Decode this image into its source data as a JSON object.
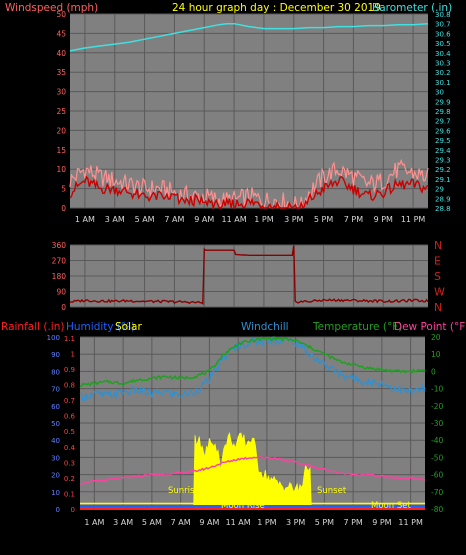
{
  "header": {
    "left_label": "Windspeed (mph)",
    "title": "24 hour graph day : December 30 2019",
    "right_label": "Barometer (.in)"
  },
  "colors": {
    "background": "#000000",
    "plot_bg": "#808080",
    "grid": "#5a5a5a",
    "axis": "#c0c0c0",
    "wind_label": "#ff6060",
    "title": "#ffff00",
    "baro": "#40e0e0",
    "wind_avg": "#cc0000",
    "wind_gust": "#ff9090",
    "wind_dir": "#8b0000",
    "rain": "#ff2020",
    "humidity": "#2060ff",
    "solar": "#ffff00",
    "windchill": "#3090d0",
    "temperature": "#20a020",
    "dewpoint": "#ff40a0",
    "moon": "#ffff00"
  },
  "chart_data": [
    {
      "type": "line",
      "title": "24 hour graph day : December 30 2019",
      "ylabel": "Windspeed (mph)",
      "ylabel_right": "Barometer (.in)",
      "x_ticks": [
        "1 AM",
        "3 AM",
        "5 AM",
        "7 AM",
        "9 AM",
        "11 AM",
        "1 PM",
        "3 PM",
        "5 PM",
        "7 PM",
        "9 PM",
        "11 PM"
      ],
      "x_range_hours": [
        0,
        24
      ],
      "ylim": [
        0,
        50
      ],
      "y_ticks": [
        0,
        5,
        10,
        15,
        20,
        25,
        30,
        35,
        40,
        45,
        50
      ],
      "ylim_right": [
        28.8,
        30.8
      ],
      "y_ticks_right": [
        "28.8",
        "28.9",
        "29",
        "29.1",
        "29.2",
        "29.3",
        "29.4",
        "29.5",
        "29.6",
        "29.7",
        "29.8",
        "29.9",
        "30",
        "30.1",
        "30.2",
        "30.3",
        "30.4",
        "30.5",
        "30.6",
        "30.7",
        "30.8"
      ],
      "series": [
        {
          "name": "Barometer (.in)",
          "axis": "right",
          "x": [
            0,
            1,
            2,
            3,
            4,
            5,
            6,
            7,
            8,
            9,
            10,
            10.5,
            11,
            12,
            13,
            14,
            15,
            16,
            17,
            18,
            19,
            20,
            21,
            22,
            23,
            24
          ],
          "values": [
            30.42,
            30.45,
            30.47,
            30.49,
            30.51,
            30.54,
            30.57,
            30.6,
            30.63,
            30.66,
            30.69,
            30.7,
            30.7,
            30.67,
            30.65,
            30.65,
            30.65,
            30.66,
            30.66,
            30.67,
            30.67,
            30.68,
            30.68,
            30.69,
            30.69,
            30.7
          ]
        },
        {
          "axis": "left",
          "x": [
            0,
            1,
            2,
            3,
            4,
            5,
            6,
            7,
            8,
            9,
            10,
            11,
            12,
            13,
            14,
            15,
            15.5,
            16,
            17,
            18,
            19,
            20,
            21,
            22,
            23,
            24
          ],
          "values": [
            4,
            7,
            5,
            5,
            4,
            3,
            3,
            3,
            2,
            2,
            1,
            1,
            1.5,
            1,
            1,
            0.5,
            0,
            2,
            5,
            7,
            5,
            3,
            4,
            6,
            6,
            5
          ]
        },
        {
          "axis": "left",
          "x": [
            0,
            1,
            2,
            3,
            4,
            5,
            6,
            7,
            8,
            9,
            10,
            11,
            12,
            13,
            14,
            15,
            15.5,
            16,
            17,
            18,
            19,
            20,
            21,
            22,
            23,
            24
          ],
          "values": [
            7,
            10,
            8,
            7,
            6,
            5,
            5,
            4,
            3,
            3,
            2,
            2,
            3,
            2,
            2,
            1,
            0.5,
            4,
            8,
            10,
            8,
            6,
            7,
            10,
            9,
            8
          ]
        }
      ]
    },
    {
      "type": "line",
      "ylim": [
        0,
        360
      ],
      "y_ticks": [
        0,
        90,
        180,
        270,
        360
      ],
      "right_labels": [
        "N",
        "W",
        "S",
        "E",
        "N"
      ],
      "series": [
        {
          "axis": "left",
          "x": [
            0,
            1,
            2,
            3,
            4,
            5,
            6,
            7,
            8,
            8.99,
            9.0,
            10.0,
            11.0,
            11.1,
            12,
            13,
            14,
            14.99,
            15.0,
            15.1,
            16,
            17,
            18,
            19,
            20,
            21,
            22,
            23,
            24
          ],
          "values": [
            30,
            38,
            35,
            34,
            36,
            33,
            32,
            30,
            28,
            25,
            330,
            330,
            330,
            305,
            300,
            300,
            300,
            300,
            350,
            30,
            32,
            40,
            40,
            38,
            36,
            34,
            34,
            38,
            35
          ]
        }
      ]
    },
    {
      "type": "line",
      "legend": [
        "Rainfall (.in)",
        "Humidity (%)",
        "Solar",
        "Windchill",
        "Temperature (°F)",
        "Dew Point (°F)"
      ],
      "ylim_left": [
        0,
        100
      ],
      "y_ticks_left": [
        0,
        10,
        20,
        30,
        40,
        50,
        60,
        70,
        80,
        90,
        100
      ],
      "rain_ticks": [
        "0",
        "0.1",
        "0.2",
        "0.3",
        "0.4",
        "0.5",
        "0.6",
        "0.7",
        "0.8",
        "0.9",
        "1",
        "1.1"
      ],
      "ylim_right": [
        -80,
        20
      ],
      "y_ticks_right": [
        -80,
        -70,
        -60,
        -50,
        -40,
        -30,
        -20,
        -10,
        0,
        10,
        20
      ],
      "annotations": [
        "Sunrise",
        "Sunset",
        "Moon Rise",
        "Moon Set"
      ],
      "series": [
        {
          "name": "Temperature (°F)",
          "axis": "right",
          "x": [
            0,
            1,
            2,
            3,
            4,
            5,
            6,
            7,
            8,
            9,
            10,
            11,
            12,
            13,
            14,
            15,
            16,
            17,
            18,
            19,
            20,
            21,
            22,
            23,
            24
          ],
          "values": [
            -8,
            -7,
            -6,
            -7,
            -5,
            -4,
            -3,
            -4,
            -3,
            0,
            10,
            16,
            18,
            19,
            19,
            18,
            14,
            10,
            6,
            4,
            2,
            1,
            0,
            0,
            1
          ]
        },
        {
          "name": "Windchill",
          "axis": "right",
          "x": [
            0,
            1,
            2,
            3,
            4,
            5,
            6,
            7,
            8,
            9,
            10,
            11,
            12,
            13,
            14,
            15,
            16,
            17,
            18,
            19,
            20,
            21,
            22,
            23,
            24
          ],
          "values": [
            -15,
            -13,
            -14,
            -12,
            -11,
            -13,
            -12,
            -14,
            -12,
            -5,
            8,
            15,
            17,
            18,
            18,
            17,
            10,
            4,
            -1,
            -4,
            -6,
            -7,
            -10,
            -12,
            -10
          ]
        },
        {
          "name": "Dew Point (°F)",
          "axis": "right",
          "x": [
            0,
            1,
            2,
            3,
            4,
            5,
            6,
            7,
            8,
            9,
            10,
            11,
            12,
            13,
            14,
            15,
            16,
            17,
            18,
            19,
            20,
            21,
            22,
            23,
            24
          ],
          "values": [
            -65,
            -64,
            -63,
            -62,
            -61,
            -60,
            -60,
            -59,
            -58,
            -56,
            -53,
            -51,
            -50,
            -50,
            -51,
            -53,
            -55,
            -57,
            -59,
            -60,
            -60,
            -61,
            -62,
            -62,
            -63
          ]
        },
        {
          "name": "Solar",
          "axis": "left",
          "x": [
            0,
            7.9,
            8.0,
            8.3,
            8.6,
            9.0,
            9.4,
            9.8,
            10.2,
            10.5,
            10.8,
            11.2,
            11.6,
            12.0,
            12.4,
            12.8,
            13.2,
            13.6,
            14.0,
            14.4,
            14.8,
            15.2,
            15.5,
            15.7,
            16.0,
            16.1,
            24
          ],
          "values": [
            0,
            0,
            40,
            42,
            30,
            38,
            40,
            25,
            40,
            42,
            35,
            42,
            38,
            42,
            25,
            20,
            18,
            15,
            14,
            13,
            12,
            11,
            14,
            28,
            20,
            0,
            0
          ]
        },
        {
          "name": "Humidity (%)",
          "axis": "left",
          "x": [
            0,
            24
          ],
          "values": [
            0,
            0
          ]
        },
        {
          "name": "Rainfall (.in)",
          "axis": "left",
          "x": [
            0,
            24
          ],
          "values": [
            0,
            0
          ]
        }
      ]
    }
  ]
}
